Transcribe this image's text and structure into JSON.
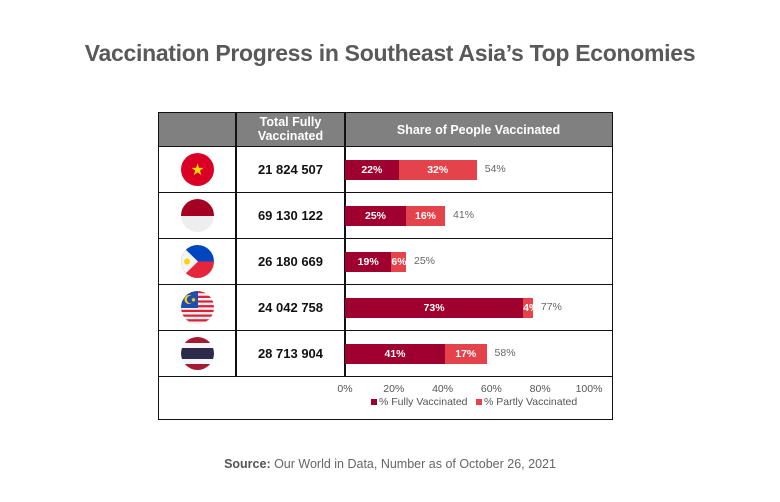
{
  "title": "Vaccination Progress in Southeast Asia’s Top Economies",
  "source_label": "Source:",
  "source_text": " Our World in Data, Number as of October 26, 2021",
  "colors": {
    "fully": "#A00030",
    "partly": "#E5434C",
    "header": "#808080"
  },
  "chart_data": {
    "type": "bar",
    "stacked": true,
    "orientation": "horizontal",
    "title": "Vaccination Progress in Southeast Asia’s Top Economies",
    "column_headers": [
      "Total Fully Vaccinated",
      "Share of People Vaccinated"
    ],
    "categories": [
      "Vietnam",
      "Indonesia",
      "Philippines",
      "Malaysia",
      "Thailand"
    ],
    "flag_icons": [
      "vietnam-flag-icon",
      "indonesia-flag-icon",
      "philippines-flag-icon",
      "malaysia-flag-icon",
      "thailand-flag-icon"
    ],
    "total_fully_vaccinated": [
      "21 824 507",
      "69 130 122",
      "26 180 669",
      "24 042 758",
      "28 713 904"
    ],
    "series": [
      {
        "name": "% Fully Vaccinated",
        "values": [
          22,
          25,
          19,
          73,
          41
        ],
        "labels": [
          "22%",
          "25%",
          "19%",
          "73%",
          "41%"
        ]
      },
      {
        "name": "% Partly Vaccinated",
        "values": [
          32,
          16,
          6,
          4,
          17
        ],
        "labels": [
          "32%",
          "16%",
          "6%",
          "4%",
          "17%"
        ]
      }
    ],
    "totals": [
      "54%",
      "41%",
      "25%",
      "77%",
      "58%"
    ],
    "xlim": [
      0,
      100
    ],
    "xticks": [
      "0%",
      "20%",
      "40%",
      "60%",
      "80%",
      "100%"
    ],
    "legend": "bottom",
    "grid": false
  }
}
